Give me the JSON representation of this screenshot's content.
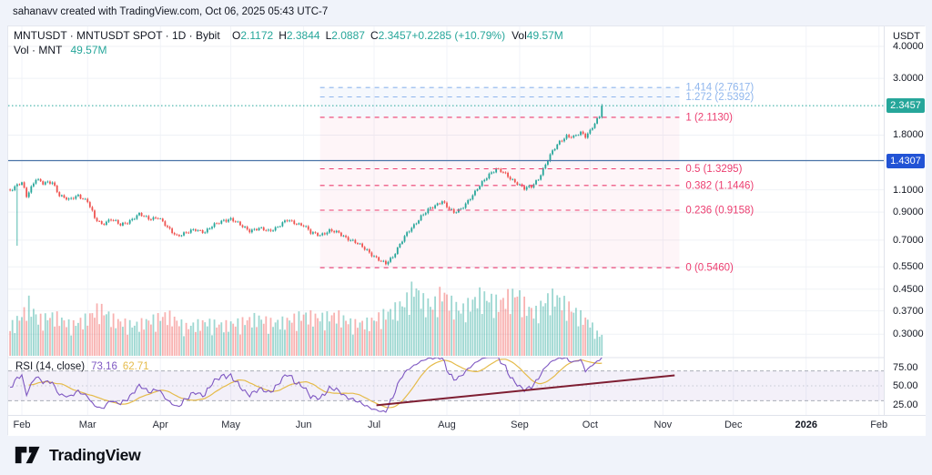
{
  "colors": {
    "bg": "#f0f3fa",
    "panel": "#ffffff",
    "border": "#e0e3eb",
    "text": "#131722",
    "up": "#26a69a",
    "down": "#ef5350",
    "vol_up": "rgba(38,166,154,0.45)",
    "vol_down": "rgba(239,83,80,0.45)",
    "grid": "#eff2f6",
    "month_grid": "#f1f3f8",
    "fib_pink": "#ec3e70",
    "fib_blue": "#8fb6ed",
    "fib_band_pink": "rgba(236,62,112,0.05)",
    "fib_band_blue": "rgba(143,182,237,0.09)",
    "current_price_line": "#26a69a",
    "hline": "#4a74a8",
    "badge_price": "#26a69a",
    "badge_hline": "#2253d5",
    "rsi": "#7e57c2",
    "rsi_ma": "#e5bb4a",
    "rsi_band": "rgba(126,87,194,0.09)",
    "rsi_guide": "#a9adb8",
    "rsi_mid_guide": "#c6cad3",
    "trendline": "#7e1e32"
  },
  "header": {
    "attribution": "sahanavv created with TradingView.com, Oct 06, 2025 05:43 UTC-7"
  },
  "legend": {
    "symbol": "MNTUSDT · MNTUSDT SPOT · 1D · Bybit",
    "ohlc": [
      {
        "label": "O",
        "value": "2.1172"
      },
      {
        "label": "H",
        "value": "2.3844"
      },
      {
        "label": "L",
        "value": "2.0887"
      },
      {
        "label": "C",
        "value": "2.3457"
      }
    ],
    "change": "+0.2285 (+10.79%)",
    "vol_label": "Vol",
    "vol_value": "49.57M",
    "row2_label": "Vol · MNT",
    "row2_value": "49.57M"
  },
  "rsi_legend": {
    "title": "RSI (14, close)",
    "value": "73.16",
    "ma_value": "62.71"
  },
  "axis": {
    "currency": "USDT",
    "price_ticks": [
      "4.0000",
      "3.0000",
      "1.8000",
      "1.1000",
      "0.9000",
      "0.7000",
      "0.5500",
      "0.4500",
      "0.3700",
      "0.3000"
    ],
    "price_badge": "2.3457",
    "hline_badge": "1.4307",
    "rsi_ticks": [
      "75.00",
      "50.00",
      "25.00"
    ],
    "months": [
      "Feb",
      "Mar",
      "Apr",
      "May",
      "Jun",
      "Jul",
      "Aug",
      "Sep",
      "Oct",
      "Nov",
      "Dec",
      "2026",
      "Feb"
    ]
  },
  "footer": {
    "brand": "TradingView"
  },
  "chart_data": {
    "type": "candlestick",
    "symbol": "MNTUSDT",
    "exchange": "Bybit",
    "interval": "1D",
    "price_scale": "log",
    "title": "MNTUSDT · MNTUSDT SPOT · 1D · Bybit",
    "y_ticks": [
      4.0,
      3.0,
      1.8,
      1.1,
      0.9,
      0.7,
      0.55,
      0.45,
      0.37,
      0.3
    ],
    "rsi_tick_values": [
      75,
      50,
      25
    ],
    "current_price": 2.3457,
    "horizontal_line": 1.4307,
    "last_candle": {
      "open": 2.1172,
      "high": 2.3844,
      "low": 2.0887,
      "close": 2.3457,
      "change": 0.2285,
      "change_pct": 10.79,
      "volume": "49.57M"
    },
    "fib_levels": [
      {
        "label": "1.414",
        "price": 2.7617,
        "tone": "blue"
      },
      {
        "label": "1.272",
        "price": 2.5392,
        "tone": "blue"
      },
      {
        "label": "1",
        "price": 2.113,
        "tone": "pink"
      },
      {
        "label": "0.5",
        "price": 1.3295,
        "tone": "pink"
      },
      {
        "label": "0.382",
        "price": 1.1446,
        "tone": "pink"
      },
      {
        "label": "0.236",
        "price": 0.9158,
        "tone": "pink"
      },
      {
        "label": "0",
        "price": 0.546,
        "tone": "pink"
      }
    ],
    "fib_x_day_range": [
      127,
      280
    ],
    "day_range": [
      -5,
      247
    ],
    "months_day_offsets": [
      0,
      28,
      59,
      89,
      120,
      150,
      181,
      212,
      242,
      273,
      303,
      334,
      365
    ],
    "close_keyframes": [
      [
        -5,
        1.1
      ],
      [
        0,
        1.17
      ],
      [
        2,
        1.04
      ],
      [
        6,
        1.22
      ],
      [
        9,
        1.16
      ],
      [
        13,
        1.18
      ],
      [
        16,
        1.05
      ],
      [
        20,
        1.0
      ],
      [
        24,
        1.05
      ],
      [
        28,
        0.99
      ],
      [
        31,
        0.85
      ],
      [
        34,
        0.81
      ],
      [
        38,
        0.845
      ],
      [
        42,
        0.8
      ],
      [
        46,
        0.835
      ],
      [
        50,
        0.88
      ],
      [
        54,
        0.85
      ],
      [
        58,
        0.86
      ],
      [
        62,
        0.78
      ],
      [
        66,
        0.73
      ],
      [
        70,
        0.745
      ],
      [
        74,
        0.77
      ],
      [
        78,
        0.755
      ],
      [
        82,
        0.8
      ],
      [
        86,
        0.84
      ],
      [
        89,
        0.845
      ],
      [
        93,
        0.8
      ],
      [
        97,
        0.765
      ],
      [
        101,
        0.775
      ],
      [
        105,
        0.76
      ],
      [
        109,
        0.79
      ],
      [
        113,
        0.835
      ],
      [
        117,
        0.815
      ],
      [
        120,
        0.8
      ],
      [
        123,
        0.745
      ],
      [
        127,
        0.735
      ],
      [
        131,
        0.76
      ],
      [
        135,
        0.745
      ],
      [
        139,
        0.71
      ],
      [
        143,
        0.675
      ],
      [
        147,
        0.64
      ],
      [
        150,
        0.605
      ],
      [
        153,
        0.575
      ],
      [
        155,
        0.565
      ],
      [
        158,
        0.605
      ],
      [
        161,
        0.675
      ],
      [
        164,
        0.74
      ],
      [
        167,
        0.8
      ],
      [
        170,
        0.87
      ],
      [
        173,
        0.915
      ],
      [
        176,
        0.95
      ],
      [
        179,
        1.0
      ],
      [
        181,
        0.95
      ],
      [
        184,
        0.89
      ],
      [
        187,
        0.925
      ],
      [
        190,
        1.0
      ],
      [
        193,
        1.075
      ],
      [
        196,
        1.17
      ],
      [
        199,
        1.27
      ],
      [
        202,
        1.33
      ],
      [
        205,
        1.28
      ],
      [
        208,
        1.22
      ],
      [
        211,
        1.17
      ],
      [
        214,
        1.11
      ],
      [
        217,
        1.13
      ],
      [
        220,
        1.22
      ],
      [
        223,
        1.38
      ],
      [
        226,
        1.55
      ],
      [
        229,
        1.7
      ],
      [
        232,
        1.79
      ],
      [
        235,
        1.76
      ],
      [
        238,
        1.84
      ],
      [
        240,
        1.79
      ],
      [
        242,
        1.88
      ],
      [
        244,
        2.0
      ],
      [
        246,
        2.12
      ],
      [
        247,
        2.3457
      ]
    ],
    "spike_low": {
      "day": -2,
      "low": 0.665
    },
    "volume_keyframes": [
      [
        -5,
        0.4
      ],
      [
        0,
        0.55
      ],
      [
        3,
        0.72
      ],
      [
        7,
        0.5
      ],
      [
        14,
        0.55
      ],
      [
        21,
        0.42
      ],
      [
        28,
        0.52
      ],
      [
        33,
        0.66
      ],
      [
        40,
        0.48
      ],
      [
        48,
        0.42
      ],
      [
        56,
        0.5
      ],
      [
        62,
        0.56
      ],
      [
        70,
        0.4
      ],
      [
        78,
        0.46
      ],
      [
        86,
        0.42
      ],
      [
        93,
        0.46
      ],
      [
        100,
        0.52
      ],
      [
        107,
        0.45
      ],
      [
        113,
        0.48
      ],
      [
        120,
        0.56
      ],
      [
        127,
        0.52
      ],
      [
        134,
        0.56
      ],
      [
        141,
        0.44
      ],
      [
        148,
        0.46
      ],
      [
        153,
        0.55
      ],
      [
        158,
        0.62
      ],
      [
        163,
        0.72
      ],
      [
        167,
        0.95
      ],
      [
        171,
        0.75
      ],
      [
        175,
        0.68
      ],
      [
        179,
        0.88
      ],
      [
        183,
        0.72
      ],
      [
        187,
        0.62
      ],
      [
        191,
        0.72
      ],
      [
        195,
        0.82
      ],
      [
        199,
        0.78
      ],
      [
        203,
        0.72
      ],
      [
        207,
        0.8
      ],
      [
        211,
        0.86
      ],
      [
        215,
        0.66
      ],
      [
        219,
        0.6
      ],
      [
        223,
        0.76
      ],
      [
        227,
        0.82
      ],
      [
        231,
        0.72
      ],
      [
        235,
        0.62
      ],
      [
        239,
        0.52
      ],
      [
        242,
        0.46
      ],
      [
        244,
        0.34
      ],
      [
        246,
        0.28
      ],
      [
        247,
        0.3
      ]
    ],
    "rsi": {
      "length": 14,
      "ma_length": 14,
      "overbought": 70,
      "middle": 50,
      "oversold": 30,
      "last_value": 73.16,
      "last_ma": 62.71,
      "trendline": {
        "from_day": 151,
        "from_value": 24,
        "to_day": 278,
        "to_value": 64
      }
    }
  }
}
